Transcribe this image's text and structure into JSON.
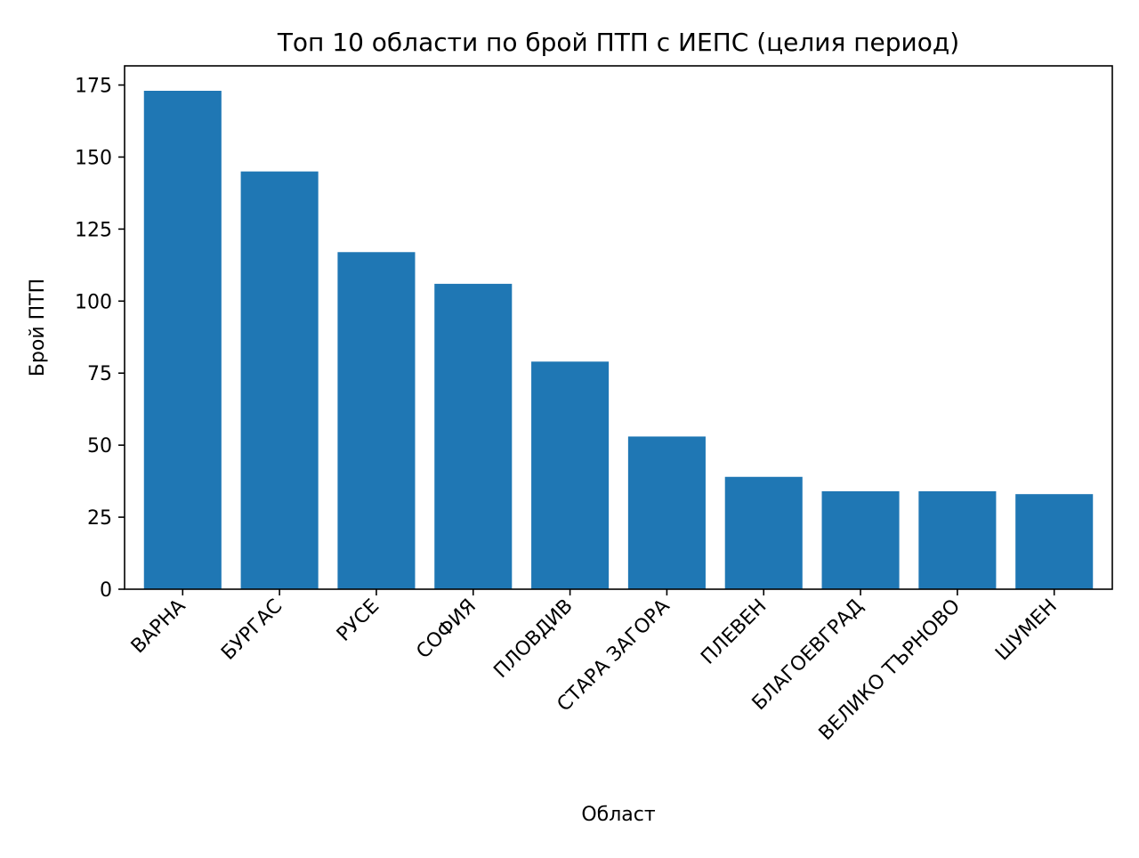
{
  "chart_data": {
    "type": "bar",
    "title": "Топ 10 области по брой ПТП с ИЕПС (целия период)",
    "xlabel": "Област",
    "ylabel": "Брой ПТП",
    "categories": [
      "ВАРНА",
      "БУРГАС",
      "РУСЕ",
      "СОФИЯ",
      "ПЛОВДИВ",
      "СТАРА ЗАГОРА",
      "ПЛЕВЕН",
      "БЛАГОЕВГРАД",
      "ВЕЛИКО ТЪРНОВО",
      "ШУМЕН"
    ],
    "values": [
      173,
      145,
      117,
      106,
      79,
      53,
      39,
      34,
      34,
      33
    ],
    "ylim": [
      0,
      181.65
    ],
    "yticks": [
      0,
      25,
      50,
      75,
      100,
      125,
      150,
      175
    ],
    "ytick_labels": [
      "0",
      "25",
      "50",
      "75",
      "100",
      "125",
      "150",
      "175"
    ],
    "grid": false,
    "bar_color": "#1f77b4"
  }
}
